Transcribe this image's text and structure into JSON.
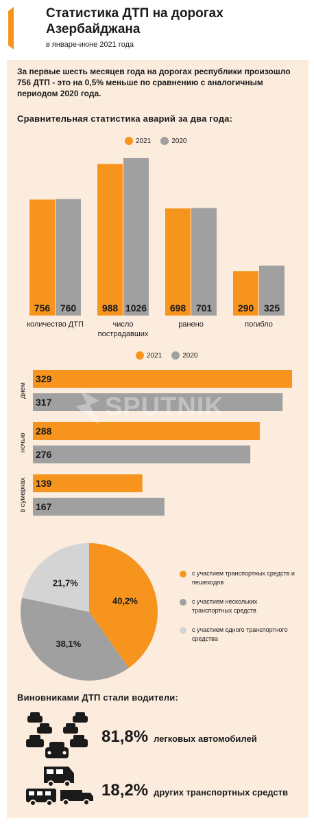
{
  "header": {
    "title": "Статистика ДТП на дорогах Азербайджана",
    "subtitle": "в январе-июне 2021 года"
  },
  "intro": "За первые шесть месяцев года на дорогах республики произошло 756 ДТП - это на 0,5% меньше по сравнению с аналогичным периодом 2020 года.",
  "section_comparison": "Сравнительная статистика аварий за два года:",
  "section_drivers": "Виновниками ДТП стали водители:",
  "legend": {
    "y2021": "2021",
    "y2020": "2020"
  },
  "colors": {
    "orange": "#f7941d",
    "gray": "#a0a0a0",
    "light_gray": "#d4d4d4",
    "panel": "#fcecde"
  },
  "watermark": "SPUTNIK",
  "chart_data": [
    {
      "type": "bar",
      "categories": [
        "количество ДТП",
        "число пострадавших",
        "ранено",
        "погибло"
      ],
      "series": [
        {
          "name": "2021",
          "values": [
            756,
            988,
            698,
            290
          ]
        },
        {
          "name": "2020",
          "values": [
            760,
            1026,
            701,
            325
          ]
        }
      ],
      "ylim": [
        0,
        1026
      ],
      "legend_position": "top-center"
    },
    {
      "type": "bar",
      "orientation": "horizontal",
      "categories": [
        "днем",
        "ночью",
        "в сумерках"
      ],
      "series": [
        {
          "name": "2021",
          "values": [
            329,
            288,
            139
          ]
        },
        {
          "name": "2020",
          "values": [
            317,
            276,
            167
          ]
        }
      ],
      "xlim": [
        0,
        329
      ],
      "legend_position": "top-center"
    },
    {
      "type": "pie",
      "slices": [
        {
          "label": "с участием транспортных средств и пешеходов",
          "value": 40.2,
          "text": "40,2%",
          "color": "#f7941d"
        },
        {
          "label": "с участием нескольких транспортных средств",
          "value": 38.1,
          "text": "38,1%",
          "color": "#a0a0a0"
        },
        {
          "label": "с участием одного транспортного средства",
          "value": 21.7,
          "text": "21,7%",
          "color": "#d4d4d4"
        }
      ]
    }
  ],
  "drivers": [
    {
      "percent": "81,8%",
      "label": "легковых автомобилей",
      "icon": "cars-icon"
    },
    {
      "percent": "18,2%",
      "label": "других транспортных средств",
      "icon": "trucks-icon"
    }
  ]
}
